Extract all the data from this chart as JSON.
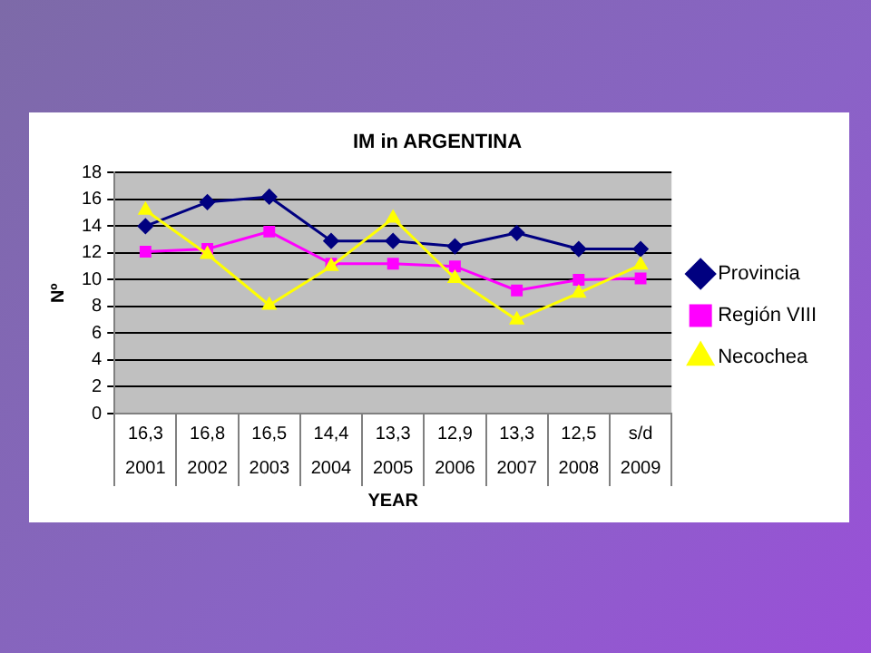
{
  "chart_data": {
    "type": "line",
    "title": "IM in ARGENTINA",
    "xlabel": "YEAR",
    "ylabel": "Nº",
    "categories": [
      "2001",
      "2002",
      "2003",
      "2004",
      "2005",
      "2006",
      "2007",
      "2008",
      "2009"
    ],
    "series": [
      {
        "name": "Provincia",
        "color": "#000080",
        "marker": "diamond",
        "values": [
          14,
          15.8,
          16.2,
          12.9,
          12.9,
          12.5,
          13.5,
          12.3,
          12.3
        ]
      },
      {
        "name": "Región VIII",
        "color": "#ff00ff",
        "marker": "square",
        "values": [
          12.1,
          12.3,
          13.6,
          11.2,
          11.2,
          11,
          9.2,
          10,
          10.1
        ]
      },
      {
        "name": "Necochea",
        "color": "#ffff00",
        "marker": "triangle",
        "values": [
          15.2,
          11.9,
          8.1,
          11,
          14.6,
          10.1,
          7,
          9,
          11.1
        ]
      }
    ],
    "annotations": [
      "16,3",
      "16,8",
      "16,5",
      "14,4",
      "13,3",
      "12,9",
      "13,3",
      "12,5",
      "s/d"
    ],
    "ylim": [
      0,
      18
    ],
    "yticks": [
      0,
      2,
      4,
      6,
      8,
      10,
      12,
      14,
      16,
      18
    ],
    "grid": "y",
    "legend": "right"
  }
}
